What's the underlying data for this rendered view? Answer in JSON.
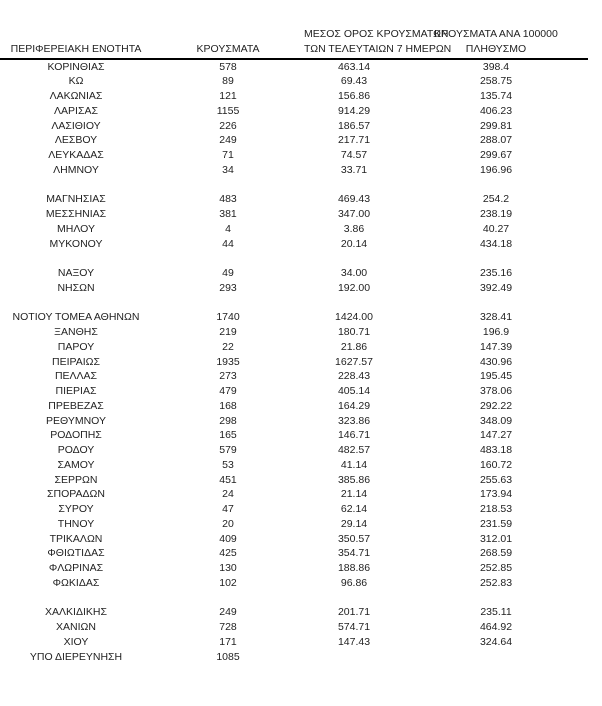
{
  "table": {
    "headers": [
      {
        "lines": [
          "ΠΕΡΙΦΕΡΕΙΑΚΗ ΕΝΟΤΗΤΑ"
        ]
      },
      {
        "lines": [
          "ΚΡΟΥΣΜΑΤΑ"
        ]
      },
      {
        "lines": [
          "ΜΕΣΟΣ ΟΡΟΣ ΚΡΟΥΣΜΑΤΩΝ",
          "ΤΩΝ ΤΕΛΕΥΤΑΙΩΝ 7 ΗΜΕΡΩΝ"
        ]
      },
      {
        "lines": [
          "ΚΡΟΥΣΜΑΤΑ ΑΝΑ 100000",
          "ΠΛΗΘΥΣΜΟ"
        ]
      }
    ],
    "rows": [
      [
        "ΚΟΡΙΝΘΙΑΣ",
        "578",
        "463.14",
        "398.4"
      ],
      [
        "ΚΩ",
        "89",
        "69.43",
        "258.75"
      ],
      [
        "ΛΑΚΩΝΙΑΣ",
        "121",
        "156.86",
        "135.74"
      ],
      [
        "ΛΑΡΙΣΑΣ",
        "1155",
        "914.29",
        "406.23"
      ],
      [
        "ΛΑΣΙΘΙΟΥ",
        "226",
        "186.57",
        "299.81"
      ],
      [
        "ΛΕΣΒΟΥ",
        "249",
        "217.71",
        "288.07"
      ],
      [
        "ΛΕΥΚΑΔΑΣ",
        "71",
        "74.57",
        "299.67"
      ],
      [
        "ΛΗΜΝΟΥ",
        "34",
        "33.71",
        "196.96"
      ],
      [
        "",
        "",
        "",
        ""
      ],
      [
        "ΜΑΓΝΗΣΙΑΣ",
        "483",
        "469.43",
        "254.2"
      ],
      [
        "ΜΕΣΣΗΝΙΑΣ",
        "381",
        "347.00",
        "238.19"
      ],
      [
        "ΜΗΛΟΥ",
        "4",
        "3.86",
        "40.27"
      ],
      [
        "ΜΥΚΟΝΟΥ",
        "44",
        "20.14",
        "434.18"
      ],
      [
        "",
        "",
        "",
        ""
      ],
      [
        "ΝΑΞΟΥ",
        "49",
        "34.00",
        "235.16"
      ],
      [
        "ΝΗΣΩΝ",
        "293",
        "192.00",
        "392.49"
      ],
      [
        "",
        "",
        "",
        ""
      ],
      [
        "ΝΟΤΙΟΥ ΤΟΜΕΑ ΑΘΗΝΩΝ",
        "1740",
        "1424.00",
        "328.41"
      ],
      [
        "ΞΑΝΘΗΣ",
        "219",
        "180.71",
        "196.9"
      ],
      [
        "ΠΑΡΟΥ",
        "22",
        "21.86",
        "147.39"
      ],
      [
        "ΠΕΙΡΑΙΩΣ",
        "1935",
        "1627.57",
        "430.96"
      ],
      [
        "ΠΕΛΛΑΣ",
        "273",
        "228.43",
        "195.45"
      ],
      [
        "ΠΙΕΡΙΑΣ",
        "479",
        "405.14",
        "378.06"
      ],
      [
        "ΠΡΕΒΕΖΑΣ",
        "168",
        "164.29",
        "292.22"
      ],
      [
        "ΡΕΘΥΜΝΟΥ",
        "298",
        "323.86",
        "348.09"
      ],
      [
        "ΡΟΔΟΠΗΣ",
        "165",
        "146.71",
        "147.27"
      ],
      [
        "ΡΟΔΟΥ",
        "579",
        "482.57",
        "483.18"
      ],
      [
        "ΣΑΜΟΥ",
        "53",
        "41.14",
        "160.72"
      ],
      [
        "ΣΕΡΡΩΝ",
        "451",
        "385.86",
        "255.63"
      ],
      [
        "ΣΠΟΡΑΔΩΝ",
        "24",
        "21.14",
        "173.94"
      ],
      [
        "ΣΥΡΟΥ",
        "47",
        "62.14",
        "218.53"
      ],
      [
        "ΤΗΝΟΥ",
        "20",
        "29.14",
        "231.59"
      ],
      [
        "ΤΡΙΚΑΛΩΝ",
        "409",
        "350.57",
        "312.01"
      ],
      [
        "ΦΘΙΩΤΙΔΑΣ",
        "425",
        "354.71",
        "268.59"
      ],
      [
        "ΦΛΩΡΙΝΑΣ",
        "130",
        "188.86",
        "252.85"
      ],
      [
        "ΦΩΚΙΔΑΣ",
        "102",
        "96.86",
        "252.83"
      ],
      [
        "",
        "",
        "",
        ""
      ],
      [
        "ΧΑΛΚΙΔΙΚΗΣ",
        "249",
        "201.71",
        "235.11"
      ],
      [
        "ΧΑΝΙΩΝ",
        "728",
        "574.71",
        "464.92"
      ],
      [
        "ΧΙΟΥ",
        "171",
        "147.43",
        "324.64"
      ],
      [
        "ΥΠΟ ΔΙΕΡΕΥΝΗΣΗ",
        "1085",
        "",
        ""
      ]
    ]
  },
  "colors": {
    "text": "#1f1f1f",
    "rule": "#000000",
    "background": "#ffffff"
  }
}
